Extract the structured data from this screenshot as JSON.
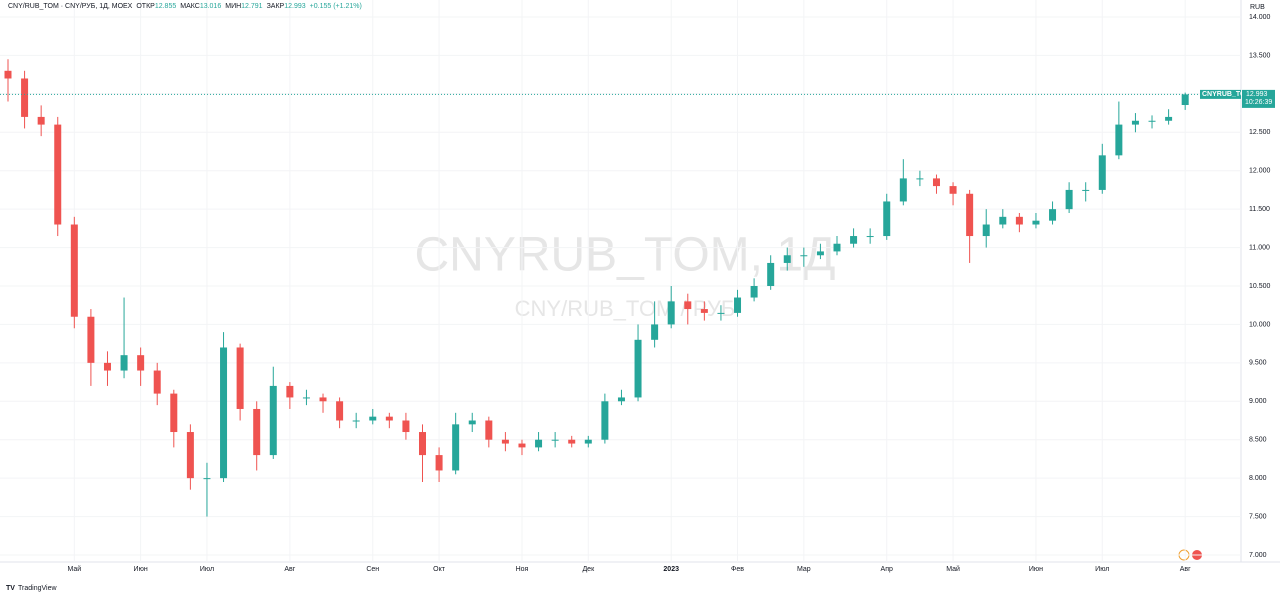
{
  "chart_data": {
    "type": "candlestick",
    "title": "CNY/RUB_TOM · CNY/РУБ, 1Д, MOEX",
    "ohlc_labels": [
      "ОТКР",
      "МАКС",
      "МИН",
      "ЗАКР"
    ],
    "change_label": "+0.155 (+1.21%)",
    "currency": "RUB",
    "symbol_tag": "CNYRUB_TOM",
    "countdown": "10:26:39",
    "watermark": "CNYRUB_TOM, 1Д",
    "watermark_sub": "CNY/RUB_TOM / РУБ",
    "brand": "TradingView",
    "up_color": "#26a69a",
    "down_color": "#ef5350",
    "categories": [
      null,
      null,
      null,
      null,
      "Май",
      null,
      null,
      null,
      "Июн",
      null,
      null,
      null,
      "Июл",
      null,
      null,
      null,
      null,
      "Авг",
      null,
      null,
      null,
      null,
      "Сен",
      null,
      null,
      null,
      "Окт",
      null,
      null,
      null,
      null,
      "Ноя",
      null,
      null,
      null,
      "Дек",
      null,
      null,
      null,
      null,
      "2023",
      null,
      null,
      null,
      "Фев",
      null,
      null,
      null,
      "Мар",
      null,
      null,
      null,
      null,
      "Апр",
      null,
      null,
      null,
      "Май",
      null,
      null,
      null,
      null,
      "Июн",
      null,
      null,
      null,
      "Июл",
      null,
      null,
      null,
      null,
      "Авг"
    ],
    "series": [
      {
        "name": "CNYRUB_TOM",
        "open": [
          13.3,
          13.2,
          12.7,
          12.6,
          11.3,
          10.1,
          9.5,
          9.4,
          9.6,
          9.4,
          9.1,
          8.6,
          8.0,
          8.0,
          9.7,
          8.9,
          8.3,
          9.2,
          9.05,
          9.05,
          9.0,
          8.75,
          8.75,
          8.8,
          8.75,
          8.6,
          8.3,
          8.1,
          8.7,
          8.75,
          8.5,
          8.45,
          8.4,
          8.5,
          8.5,
          8.45,
          8.5,
          9.0,
          9.05,
          9.8,
          10.0,
          10.3,
          10.2,
          10.15,
          10.15,
          10.35,
          10.5,
          10.8,
          10.9,
          10.9,
          10.95,
          11.05,
          11.15,
          11.15,
          11.6,
          11.9,
          11.9,
          11.8,
          11.7,
          11.15,
          11.3,
          11.4,
          11.3,
          11.35,
          11.5,
          11.75,
          11.75,
          12.2,
          12.6,
          12.65,
          12.65,
          12.855
        ],
        "high": [
          13.45,
          13.3,
          12.85,
          12.7,
          11.4,
          10.2,
          9.65,
          10.35,
          9.7,
          9.5,
          9.15,
          8.7,
          8.2,
          9.9,
          9.75,
          9.0,
          9.45,
          9.25,
          9.15,
          9.1,
          9.05,
          8.85,
          8.9,
          8.85,
          8.85,
          8.7,
          8.4,
          8.85,
          8.85,
          8.8,
          8.6,
          8.5,
          8.6,
          8.6,
          8.55,
          8.55,
          9.1,
          9.15,
          10.0,
          10.3,
          10.5,
          10.4,
          10.3,
          10.25,
          10.45,
          10.6,
          10.9,
          11.0,
          11.0,
          11.05,
          11.15,
          11.25,
          11.25,
          11.7,
          12.15,
          12.0,
          11.95,
          11.85,
          11.75,
          11.5,
          11.5,
          11.45,
          11.45,
          11.6,
          11.85,
          11.85,
          12.35,
          12.9,
          12.75,
          12.72,
          12.8,
          13.016
        ],
        "low": [
          12.9,
          12.55,
          12.45,
          11.15,
          9.95,
          9.2,
          9.2,
          9.3,
          9.2,
          8.95,
          8.4,
          7.85,
          7.5,
          7.95,
          8.75,
          8.1,
          8.25,
          8.9,
          8.95,
          8.85,
          8.65,
          8.65,
          8.7,
          8.65,
          8.5,
          7.95,
          7.95,
          8.05,
          8.6,
          8.4,
          8.35,
          8.3,
          8.35,
          8.4,
          8.4,
          8.4,
          8.45,
          8.95,
          9.0,
          9.7,
          9.95,
          10.0,
          10.05,
          10.05,
          10.1,
          10.3,
          10.45,
          10.7,
          10.75,
          10.85,
          10.9,
          11.0,
          11.05,
          11.1,
          11.55,
          11.8,
          11.7,
          11.55,
          10.8,
          11.0,
          11.25,
          11.2,
          11.25,
          11.3,
          11.45,
          11.6,
          11.7,
          12.15,
          12.5,
          12.55,
          12.6,
          12.791
        ],
        "close": [
          13.2,
          12.7,
          12.6,
          11.3,
          10.1,
          9.5,
          9.4,
          9.6,
          9.4,
          9.1,
          8.6,
          8.0,
          8.0,
          9.7,
          8.9,
          8.3,
          9.2,
          9.05,
          9.05,
          9.0,
          8.75,
          8.75,
          8.8,
          8.75,
          8.6,
          8.3,
          8.1,
          8.7,
          8.75,
          8.5,
          8.45,
          8.4,
          8.5,
          8.5,
          8.45,
          8.5,
          9.0,
          9.05,
          9.8,
          10.0,
          10.3,
          10.2,
          10.15,
          10.15,
          10.35,
          10.5,
          10.8,
          10.9,
          10.9,
          10.95,
          11.05,
          11.15,
          11.15,
          11.6,
          11.9,
          11.9,
          11.8,
          11.7,
          11.15,
          11.3,
          11.4,
          11.3,
          11.35,
          11.5,
          11.75,
          11.75,
          12.2,
          12.6,
          12.65,
          12.65,
          12.7,
          12.993
        ]
      }
    ],
    "ylim": [
      7.0,
      14.0
    ],
    "yticks": [
      {
        "value": 7.0,
        "label": "7.000"
      },
      {
        "value": 7.5,
        "label": "7.500"
      },
      {
        "value": 8.0,
        "label": "8.000"
      },
      {
        "value": 8.5,
        "label": "8.500"
      },
      {
        "value": 9.0,
        "label": "9.000"
      },
      {
        "value": 9.5,
        "label": "9.500"
      },
      {
        "value": 10.0,
        "label": "10.000"
      },
      {
        "value": 10.5,
        "label": "10.500"
      },
      {
        "value": 11.0,
        "label": "11.000"
      },
      {
        "value": 11.5,
        "label": "11.500"
      },
      {
        "value": 12.0,
        "label": "12.000"
      },
      {
        "value": 12.5,
        "label": "12.500"
      },
      {
        "value": 13.0,
        "label": "13.000"
      },
      {
        "value": 13.5,
        "label": "13.500"
      },
      {
        "value": 14.0,
        "label": "14.000"
      }
    ],
    "grid": true
  }
}
